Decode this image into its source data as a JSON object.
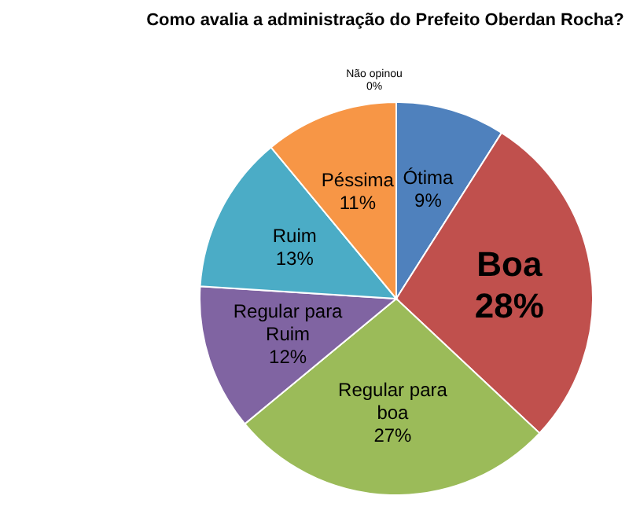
{
  "chart_data": {
    "type": "pie",
    "title": "Como avalia a administração do Prefeito Oberdan Rocha?",
    "categories": [
      "Ótima",
      "Boa",
      "Regular para boa",
      "Regular para Ruim",
      "Ruim",
      "Péssima",
      "Não opinou"
    ],
    "values": [
      9,
      28,
      27,
      12,
      13,
      11,
      0
    ],
    "value_labels": [
      "9%",
      "28%",
      "27%",
      "12%",
      "13%",
      "11%",
      "0%"
    ],
    "colors": [
      "#4f81bd",
      "#c0504d",
      "#9bbb59",
      "#8064a2",
      "#4bacc6",
      "#f79646",
      "#8eb4e3"
    ],
    "legend": false
  }
}
